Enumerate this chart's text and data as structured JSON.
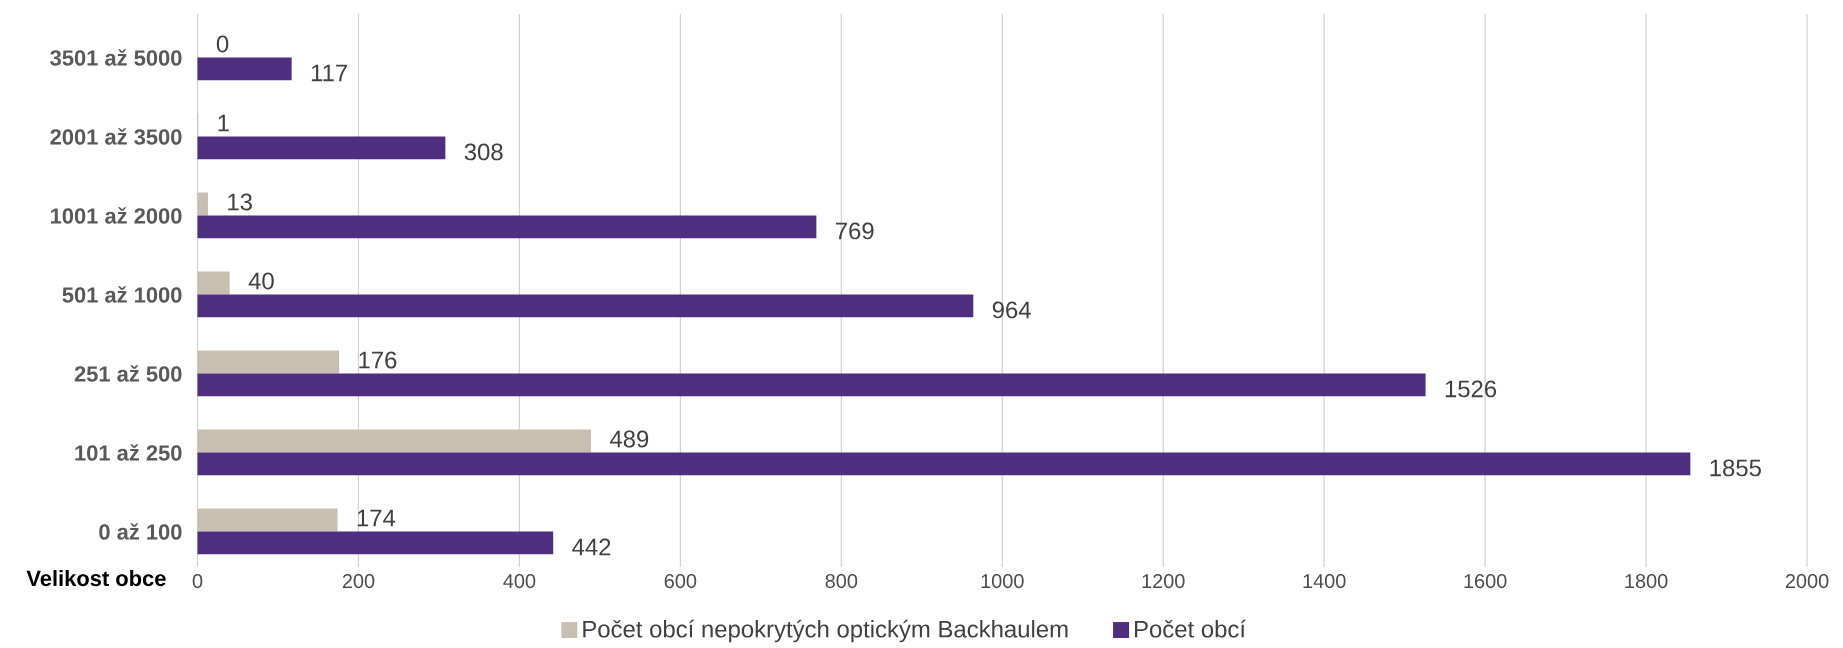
{
  "chart_data": {
    "type": "bar",
    "orientation": "horizontal",
    "ylabel": "Velikost obce",
    "categories": [
      "3501 až 5000",
      "2001 až 3500",
      "1001 až 2000",
      "501 až 1000",
      "251 až 500",
      "101 až 250",
      "0 až 100"
    ],
    "series": [
      {
        "name": "Počet obcí nepokrytých optickým Backhaulem",
        "color": "#c9bfb1",
        "values": [
          0,
          1,
          13,
          40,
          176,
          489,
          174
        ]
      },
      {
        "name": "Počet obcí",
        "color": "#4f2d7f",
        "values": [
          117,
          308,
          769,
          964,
          1526,
          1855,
          442
        ]
      }
    ],
    "xlim": [
      0,
      2000
    ],
    "xticks": [
      0,
      200,
      400,
      600,
      800,
      1000,
      1200,
      1400,
      1600,
      1800,
      2000
    ],
    "grid": "x",
    "legend": "bottom",
    "data_labels": true
  }
}
